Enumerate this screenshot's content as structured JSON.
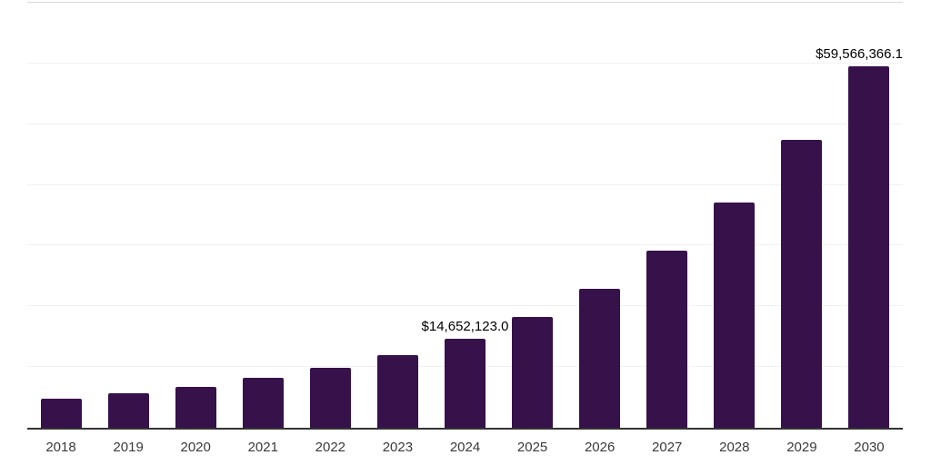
{
  "chart_data": {
    "type": "bar",
    "title": "",
    "xlabel": "",
    "ylabel": "",
    "categories": [
      "2018",
      "2019",
      "2020",
      "2021",
      "2022",
      "2023",
      "2024",
      "2025",
      "2026",
      "2027",
      "2028",
      "2029",
      "2030"
    ],
    "values": [
      4790000,
      5680000,
      6730000,
      8230000,
      9870000,
      11970000,
      14652123.0,
      18250000,
      22880000,
      29170000,
      37090000,
      47410000,
      59566366.1
    ],
    "value_labels": [
      {
        "category": "2024",
        "text": "$14,652,123.0",
        "align": "center"
      },
      {
        "category": "2030",
        "text": "$59,566,366.1",
        "align": "right"
      }
    ],
    "ylim": [
      0,
      70000000
    ],
    "gridline_interval": 10000000,
    "grid": "horizontal",
    "legend_position": "none"
  },
  "colors": {
    "bar": "#36114a",
    "axis": "#333333",
    "gridline": "#f1f1f1",
    "top_line": "#d9d9d9",
    "tick_label": "#3a3a3a",
    "value_label": "#000000"
  }
}
